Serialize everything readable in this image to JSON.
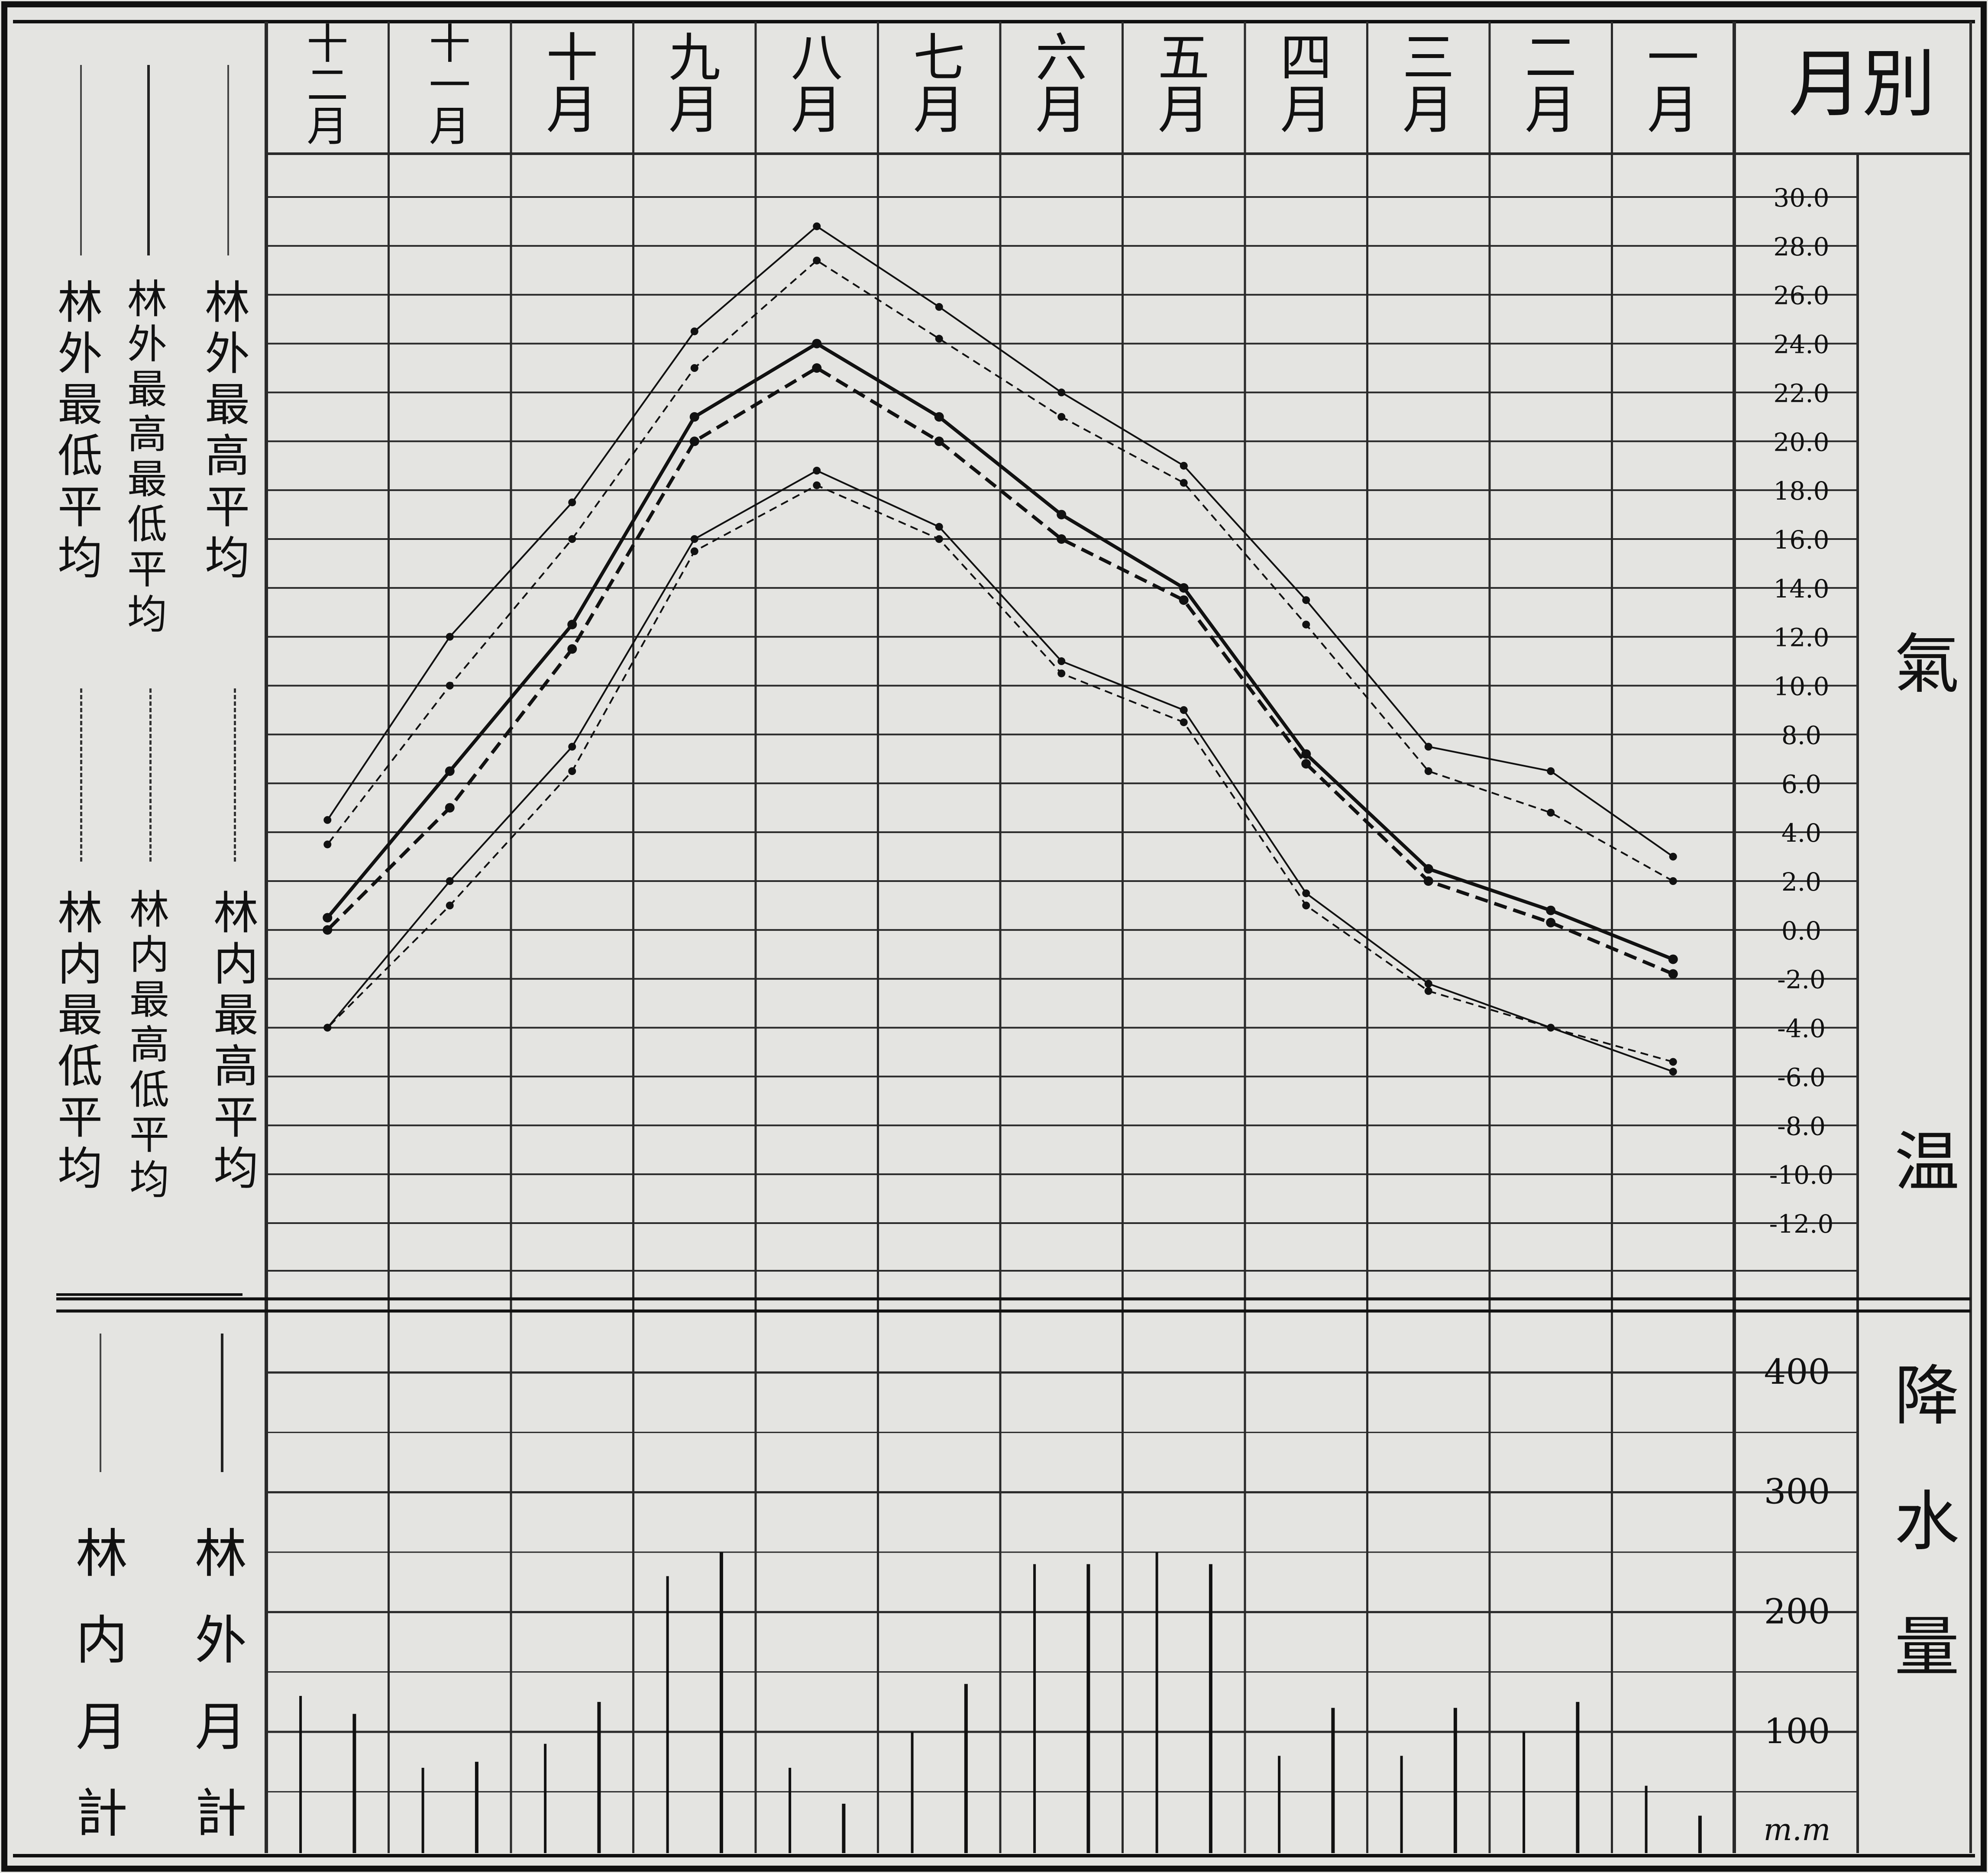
{
  "header": {
    "title": "月別"
  },
  "months": [
    "一月",
    "二月",
    "三月",
    "四月",
    "五月",
    "六月",
    "七月",
    "八月",
    "九月",
    "十月",
    "十一月",
    "十二月"
  ],
  "sections": {
    "temperature": "氣温",
    "precipitation": "降水量"
  },
  "temperature_ticks": [
    "30.0",
    "28.0",
    "26.0",
    "24.0",
    "22.0",
    "20.0",
    "18.0",
    "16.0",
    "14.0",
    "12.0",
    "10.0",
    "8.0",
    "6.0",
    "4.0",
    "2.0",
    "0.0",
    "-2.0",
    "-4.0",
    "-6.0",
    "-8.0",
    "-10.0",
    "-12.0"
  ],
  "precip_ticks": [
    "400",
    "300",
    "200",
    "100"
  ],
  "precip_unit": "m.m",
  "legend": {
    "outside_temp": [
      "林外最高平均",
      "林外最高最低平均",
      "林外最低平均"
    ],
    "inside_temp": [
      "林内最高平均",
      "林内最高低平均",
      "林内最低平均"
    ],
    "precip": [
      "林外月計",
      "林内月計"
    ]
  },
  "colors": {
    "paper": "#e4e4e1",
    "ink": "#111111",
    "grid": "#2a2a2a"
  },
  "chart_data": [
    {
      "type": "line",
      "title": "氣温",
      "categories": [
        "一月",
        "二月",
        "三月",
        "四月",
        "五月",
        "六月",
        "七月",
        "八月",
        "九月",
        "十月",
        "十一月",
        "十二月"
      ],
      "ylim": [
        -12,
        30
      ],
      "series": [
        {
          "name": "林外最高平均",
          "style": "solid-thin",
          "values": [
            3.0,
            6.5,
            7.5,
            13.5,
            19.0,
            22.0,
            25.5,
            28.8,
            24.5,
            17.5,
            12.0,
            4.5
          ]
        },
        {
          "name": "林内最高平均",
          "style": "dashed-thin",
          "values": [
            2.0,
            4.8,
            6.5,
            12.5,
            18.3,
            21.0,
            24.2,
            27.4,
            23.0,
            16.0,
            10.0,
            3.5
          ]
        },
        {
          "name": "林外最高最低平均",
          "style": "solid-thick",
          "values": [
            -1.2,
            0.8,
            2.5,
            7.2,
            14.0,
            17.0,
            21.0,
            24.0,
            21.0,
            12.5,
            6.5,
            0.5
          ]
        },
        {
          "name": "林内最高低平均",
          "style": "dashed-thick",
          "values": [
            -1.8,
            0.3,
            2.0,
            6.8,
            13.5,
            16.0,
            20.0,
            23.0,
            20.0,
            11.5,
            5.0,
            0.0
          ]
        },
        {
          "name": "林外最低平均",
          "style": "solid-thin",
          "values": [
            -5.8,
            -4.0,
            -2.2,
            1.5,
            9.0,
            11.0,
            16.5,
            18.8,
            16.0,
            7.5,
            2.0,
            -4.0
          ]
        },
        {
          "name": "林内最低平均",
          "style": "dashed-thin",
          "values": [
            -5.4,
            -4.0,
            -2.5,
            1.0,
            8.5,
            10.5,
            16.0,
            18.2,
            15.5,
            6.5,
            1.0,
            -4.0
          ]
        }
      ]
    },
    {
      "type": "bar",
      "title": "降水量",
      "categories": [
        "一月",
        "二月",
        "三月",
        "四月",
        "五月",
        "六月",
        "七月",
        "八月",
        "九月",
        "十月",
        "十一月",
        "十二月"
      ],
      "ylim": [
        0,
        400
      ],
      "unit": "m.m",
      "series": [
        {
          "name": "林外月計",
          "values": [
            30,
            125,
            120,
            120,
            240,
            240,
            140,
            40,
            250,
            125,
            75,
            115
          ]
        },
        {
          "name": "林内月計",
          "values": [
            55,
            100,
            80,
            80,
            250,
            240,
            100,
            70,
            230,
            90,
            70,
            130
          ]
        }
      ]
    }
  ]
}
